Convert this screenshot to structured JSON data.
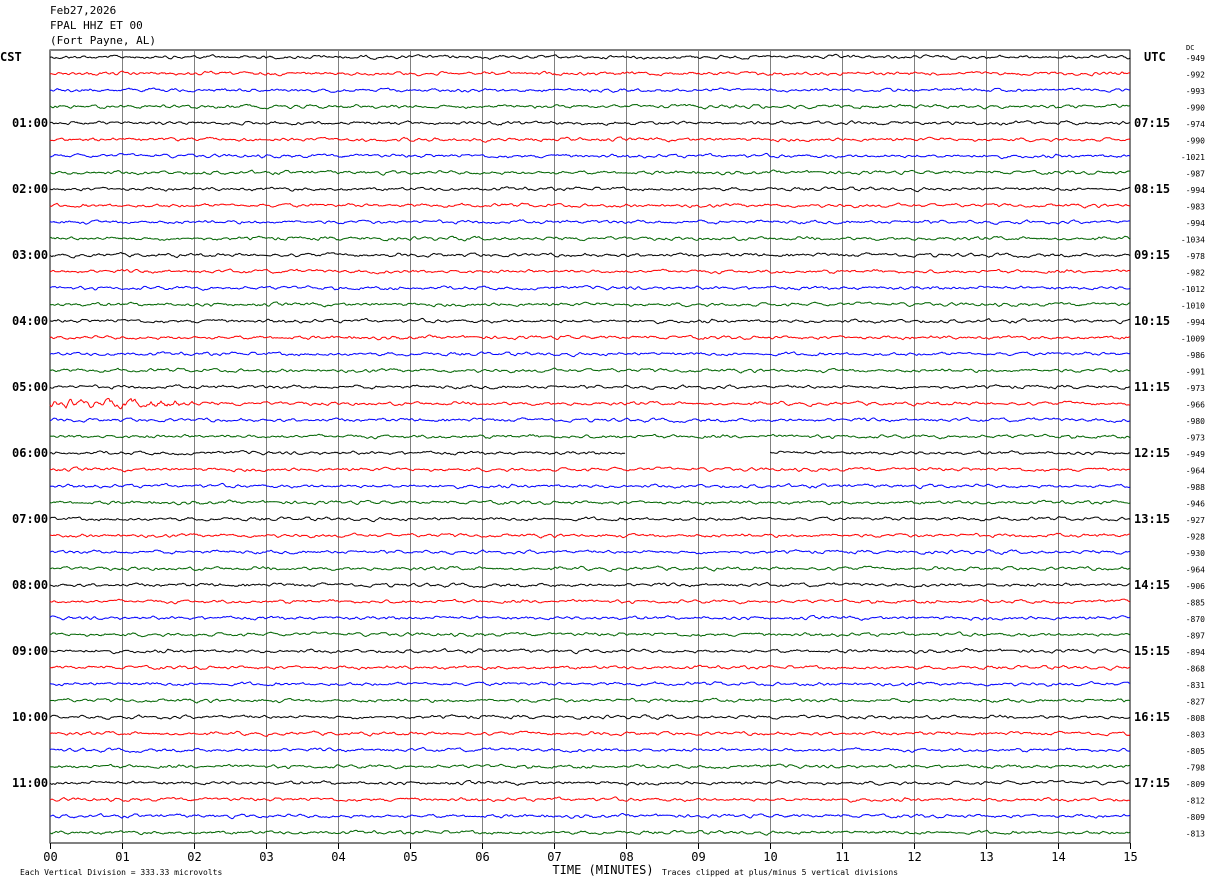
{
  "header": {
    "date": "Feb27,2026",
    "station": "FPAL HHZ ET 00",
    "location": "(Fort Payne, AL)"
  },
  "chart_data": {
    "type": "line",
    "title": "FPAL HHZ ET 00",
    "left_axis_label": "CST",
    "right_axis_label": "UTC",
    "dc_label": "DC",
    "xlabel": "TIME (MINUTES)",
    "xlim": [
      0,
      15
    ],
    "x_ticks": [
      "00",
      "01",
      "02",
      "03",
      "04",
      "05",
      "06",
      "07",
      "08",
      "09",
      "10",
      "11",
      "12",
      "13",
      "14",
      "15"
    ],
    "left_time_labels": [
      "01:00",
      "02:00",
      "03:00",
      "04:00",
      "05:00",
      "06:00",
      "07:00",
      "08:00",
      "09:00",
      "10:00",
      "11:00"
    ],
    "right_time_labels": [
      "07:15",
      "08:15",
      "09:15",
      "10:15",
      "11:15",
      "12:15",
      "13:15",
      "14:15",
      "15:15",
      "16:15",
      "17:15"
    ],
    "rows_per_hour": 4,
    "trace_colors": [
      "#000000",
      "#ff0000",
      "#0000ff",
      "#006400"
    ],
    "dc_offsets": [
      -949,
      -992,
      -993,
      -990,
      -974,
      -990,
      -1021,
      -987,
      -994,
      -983,
      -994,
      -1034,
      -978,
      -982,
      -1012,
      -1010,
      -994,
      -1009,
      -986,
      -991,
      -973,
      -966,
      -980,
      -973,
      -949,
      -964,
      -988,
      -946,
      -927,
      -928,
      -930,
      -964,
      -906,
      -885,
      -870,
      -897,
      -894,
      -868,
      -831,
      -827,
      -808,
      -803,
      -805,
      -798,
      -809,
      -812,
      -809,
      -813
    ],
    "data_gaps": [
      {
        "row": 24,
        "start_min": 8,
        "end_min": 10
      }
    ],
    "noisy_segments": [
      {
        "row": 21,
        "start_min": 0,
        "end_min": 2
      }
    ],
    "grid": true
  },
  "footer": {
    "scale_note": "Each Vertical Division =  333.33 microvolts",
    "clip_note": "Traces clipped at plus/minus 5 vertical divisions"
  }
}
